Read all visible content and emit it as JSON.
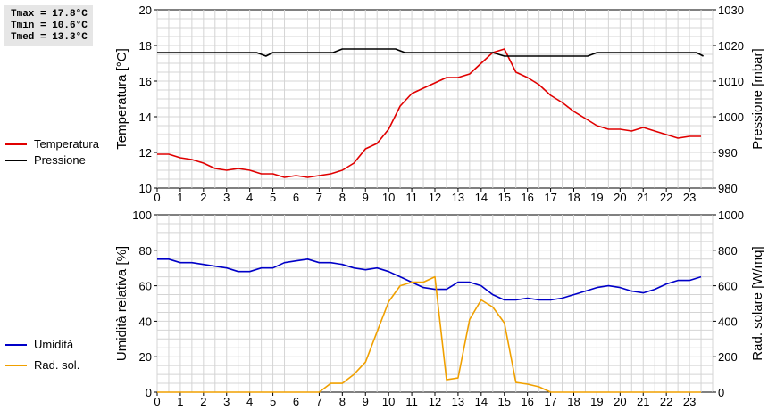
{
  "stats": [
    "Tmax = 17.8°C",
    "Tmin = 10.6°C",
    "Tmed = 13.3°C"
  ],
  "chart_data": [
    {
      "type": "line",
      "x_ticks": [
        "0",
        "1",
        "2",
        "3",
        "4",
        "5",
        "6",
        "7",
        "8",
        "9",
        "10",
        "11",
        "12",
        "13",
        "14",
        "15",
        "16",
        "17",
        "18",
        "19",
        "20",
        "21",
        "22",
        "23"
      ],
      "x_range": [
        0,
        24
      ],
      "grid": true,
      "ylabel_left": "Temperatura [°C]",
      "ylabel_right": "Pressione [mbar]",
      "ylim_left": [
        10,
        20
      ],
      "yticks_left": [
        "10",
        "12",
        "14",
        "16",
        "18",
        "20"
      ],
      "ylim_right": [
        980,
        1030
      ],
      "yticks_right": [
        "980",
        "990",
        "1000",
        "1010",
        "1020",
        "1030"
      ],
      "series": [
        {
          "name": "Temperatura",
          "axis": "left",
          "color": "#e00000",
          "x": [
            0,
            0.5,
            1,
            1.5,
            2,
            2.5,
            3,
            3.5,
            4,
            4.5,
            5,
            5.5,
            6,
            6.5,
            7,
            7.5,
            8,
            8.5,
            9,
            9.5,
            10,
            10.5,
            11,
            11.5,
            12,
            12.5,
            13,
            13.5,
            14,
            14.5,
            15,
            15.5,
            16,
            16.5,
            17,
            17.5,
            18,
            18.5,
            19,
            19.5,
            20,
            20.5,
            21,
            21.5,
            22,
            22.5,
            23,
            23.5
          ],
          "values": [
            11.9,
            11.9,
            11.7,
            11.6,
            11.4,
            11.1,
            11.0,
            11.1,
            11.0,
            10.8,
            10.8,
            10.6,
            10.7,
            10.6,
            10.7,
            10.8,
            11.0,
            11.4,
            12.2,
            12.5,
            13.3,
            14.6,
            15.3,
            15.6,
            15.9,
            16.2,
            16.2,
            16.4,
            17.0,
            17.6,
            17.8,
            16.5,
            16.2,
            15.8,
            15.2,
            14.8,
            14.3,
            13.9,
            13.5,
            13.3,
            13.3,
            13.2,
            13.4,
            13.2,
            13.0,
            12.8,
            12.9,
            12.9
          ]
        },
        {
          "name": "Pressione",
          "axis": "right",
          "color": "#000000",
          "x": [
            0,
            1,
            2,
            3,
            4,
            4.3,
            4.7,
            5,
            6,
            7,
            7.6,
            8,
            9,
            10,
            10.3,
            10.7,
            11,
            12,
            13,
            14,
            14.5,
            15,
            16,
            17,
            18,
            18.6,
            19,
            20,
            21,
            22,
            23,
            23.3,
            23.6
          ],
          "values": [
            1018,
            1018,
            1018,
            1018,
            1018,
            1018,
            1017,
            1018,
            1018,
            1018,
            1018,
            1019,
            1019,
            1019,
            1019,
            1018,
            1018,
            1018,
            1018,
            1018,
            1018,
            1017,
            1017,
            1017,
            1017,
            1017,
            1018,
            1018,
            1018,
            1018,
            1018,
            1018,
            1017
          ]
        }
      ]
    },
    {
      "type": "line",
      "x_ticks": [
        "0",
        "1",
        "2",
        "3",
        "4",
        "5",
        "6",
        "7",
        "8",
        "9",
        "10",
        "11",
        "12",
        "13",
        "14",
        "15",
        "16",
        "17",
        "18",
        "19",
        "20",
        "21",
        "22",
        "23"
      ],
      "x_range": [
        0,
        24
      ],
      "grid": true,
      "ylabel_left": "Umidità relativa [%]",
      "ylabel_right": "Rad. solare [W/mq]",
      "ylim_left": [
        0,
        100
      ],
      "yticks_left": [
        "0",
        "20",
        "40",
        "60",
        "80",
        "100"
      ],
      "ylim_right": [
        0,
        1000
      ],
      "yticks_right": [
        "0",
        "200",
        "400",
        "600",
        "800",
        "1000"
      ],
      "series": [
        {
          "name": "Umidità",
          "axis": "left",
          "color": "#0000c8",
          "x": [
            0,
            0.5,
            1,
            1.5,
            2,
            2.5,
            3,
            3.5,
            4,
            4.5,
            5,
            5.5,
            6,
            6.5,
            7,
            7.5,
            8,
            8.5,
            9,
            9.5,
            10,
            10.5,
            11,
            11.5,
            12,
            12.5,
            13,
            13.5,
            14,
            14.5,
            15,
            15.5,
            16,
            16.5,
            17,
            17.5,
            18,
            18.5,
            19,
            19.5,
            20,
            20.5,
            21,
            21.5,
            22,
            22.5,
            23,
            23.5
          ],
          "values": [
            75,
            75,
            73,
            73,
            72,
            71,
            70,
            68,
            68,
            70,
            70,
            73,
            74,
            75,
            73,
            73,
            72,
            70,
            69,
            70,
            68,
            65,
            62,
            59,
            58,
            58,
            62,
            62,
            60,
            55,
            52,
            52,
            53,
            52,
            52,
            53,
            55,
            57,
            59,
            60,
            59,
            57,
            56,
            58,
            61,
            63,
            63,
            65
          ]
        },
        {
          "name": "Rad. sol.",
          "axis": "right",
          "color": "#f0a000",
          "x": [
            0,
            1,
            2,
            3,
            4,
            5,
            6,
            7,
            7.5,
            8,
            8.5,
            9,
            9.5,
            10,
            10.5,
            11,
            11.5,
            12,
            12.5,
            13,
            13.5,
            14,
            14.5,
            15,
            15.5,
            16,
            16.5,
            17,
            18,
            19,
            20,
            21,
            22,
            23,
            23.5
          ],
          "values": [
            0,
            0,
            0,
            0,
            0,
            0,
            0,
            0,
            50,
            50,
            100,
            170,
            340,
            510,
            600,
            620,
            620,
            650,
            70,
            80,
            410,
            520,
            480,
            390,
            55,
            45,
            30,
            0,
            0,
            0,
            0,
            0,
            0,
            0,
            0
          ]
        }
      ]
    }
  ]
}
